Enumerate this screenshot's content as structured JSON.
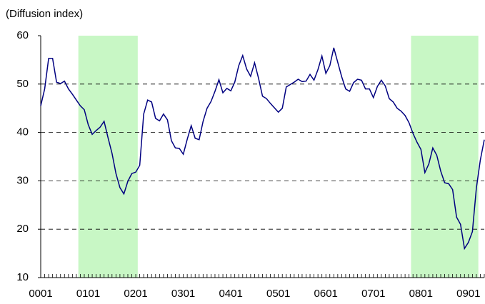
{
  "chart_data": {
    "type": "line",
    "y_label": "(Diffusion index)",
    "categories": [
      "0001",
      null,
      null,
      null,
      null,
      null,
      null,
      null,
      null,
      null,
      null,
      null,
      "0101",
      null,
      null,
      null,
      null,
      null,
      null,
      null,
      null,
      null,
      null,
      null,
      "0201",
      null,
      null,
      null,
      null,
      null,
      null,
      null,
      null,
      null,
      null,
      null,
      "0301",
      null,
      null,
      null,
      null,
      null,
      null,
      null,
      null,
      null,
      null,
      null,
      "0401",
      null,
      null,
      null,
      null,
      null,
      null,
      null,
      null,
      null,
      null,
      null,
      "0501",
      null,
      null,
      null,
      null,
      null,
      null,
      null,
      null,
      null,
      null,
      null,
      "0601",
      null,
      null,
      null,
      null,
      null,
      null,
      null,
      null,
      null,
      null,
      null,
      "0701",
      null,
      null,
      null,
      null,
      null,
      null,
      null,
      null,
      null,
      null,
      null,
      "0801",
      null,
      null,
      null,
      null,
      null,
      null,
      null,
      null,
      null,
      null,
      null,
      "0901",
      null,
      null,
      null,
      null
    ],
    "series": [
      {
        "color": "#000080",
        "values": [
          45.5,
          49,
          55.3,
          55.3,
          50.4,
          50.1,
          50.6,
          49,
          47.9,
          46.7,
          45.5,
          44.7,
          41.6,
          39.6,
          40.4,
          41.1,
          42.3,
          38.9,
          35.7,
          31.5,
          28.6,
          27.3,
          29.9,
          31.5,
          31.8,
          33.2,
          43.8,
          46.7,
          46.3,
          42.9,
          42.4,
          43.8,
          42.6,
          38.3,
          36.8,
          36.7,
          35.5,
          38.6,
          41.4,
          38.8,
          38.5,
          42.3,
          45,
          46.4,
          48.5,
          50.9,
          48.2,
          49.1,
          48.6,
          50.4,
          53.8,
          55.9,
          53.1,
          51.6,
          54.4,
          51.2,
          47.5,
          47,
          46,
          45.1,
          44.2,
          45.0,
          49.4,
          49.9,
          50.4,
          51.0,
          50.5,
          50.6,
          52.0,
          50.8,
          53.0,
          55.8,
          52.2,
          53.8,
          57.5,
          54.5,
          51.5,
          49.0,
          48.5,
          50.3,
          51.0,
          50.8,
          49.0,
          49.0,
          47.2,
          49.5,
          50.8,
          49.6,
          47.0,
          46.3,
          45.0,
          44.4,
          43.5,
          42.0,
          39.8,
          38.0,
          36.5,
          31.7,
          33.5,
          36.8,
          35.3,
          32.0,
          29.6,
          29.4,
          28.2,
          22.5,
          21.0,
          16.0,
          17.3,
          19.5,
          28.5,
          34.3,
          38.5
        ]
      }
    ],
    "ylim": [
      10,
      60
    ],
    "yticks": [
      10,
      20,
      30,
      40,
      50,
      60
    ],
    "grid": true,
    "shaded_ranges": [
      [
        10,
        24
      ],
      [
        94,
        110
      ]
    ],
    "shade_color": "#c8f7c5"
  }
}
